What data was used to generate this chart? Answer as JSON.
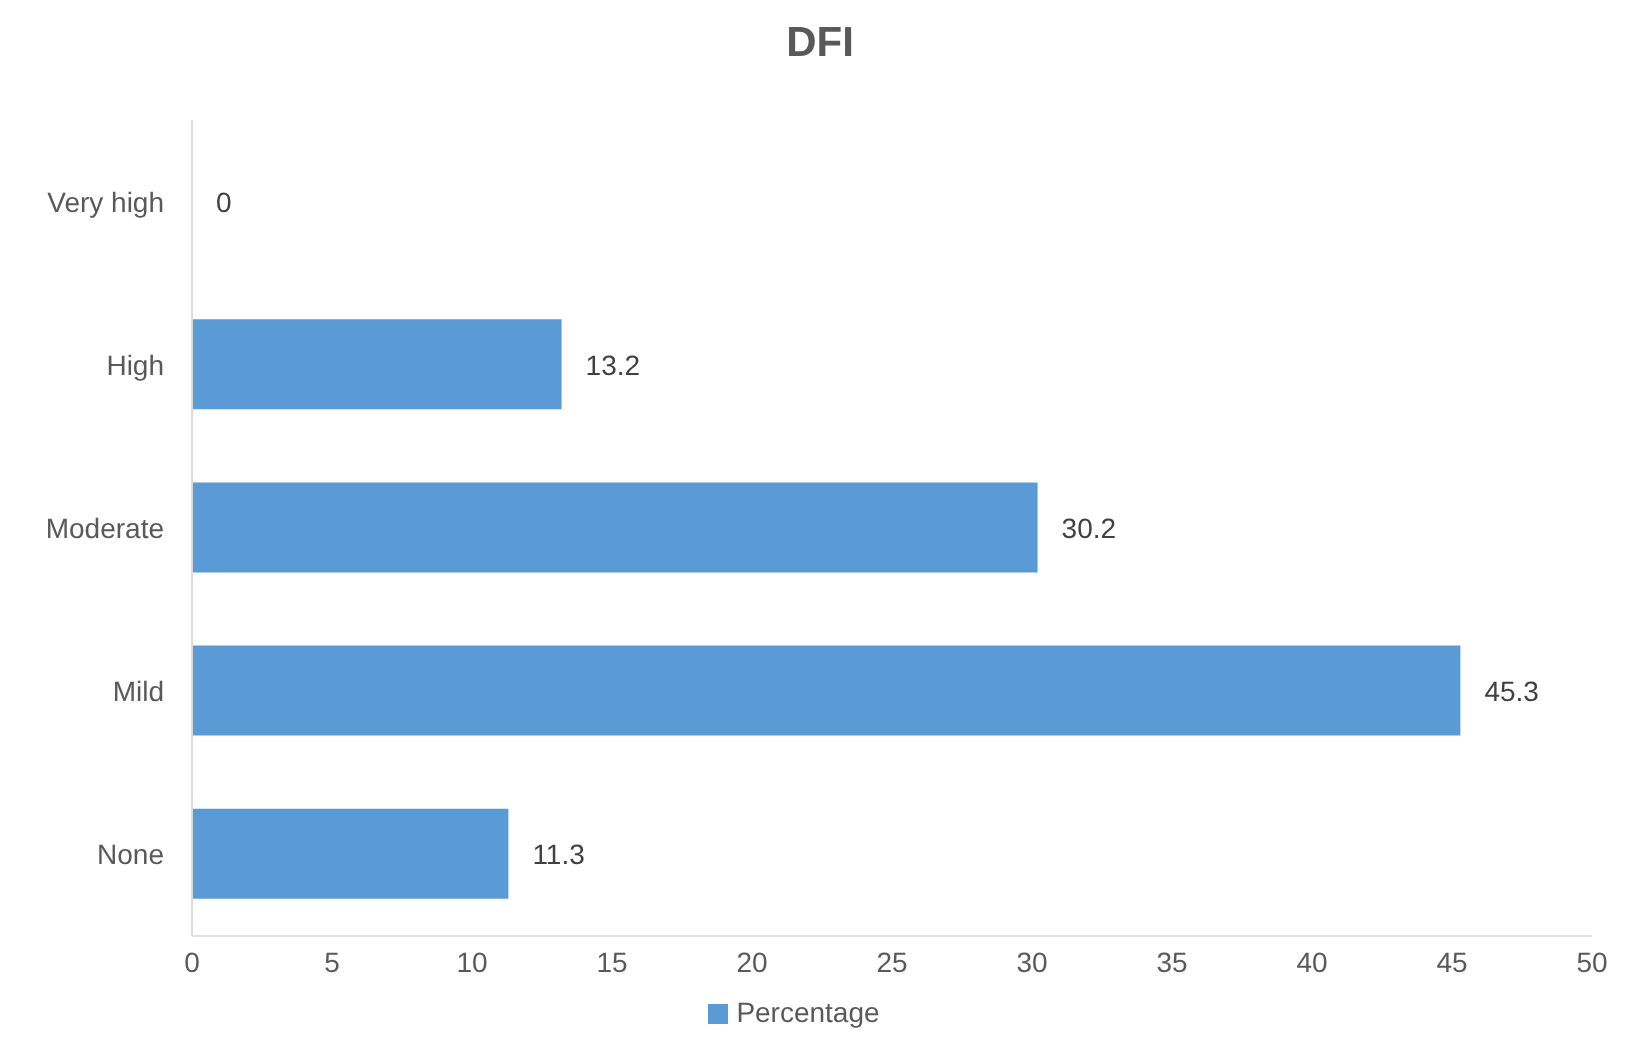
{
  "chart_data": {
    "type": "bar",
    "orientation": "horizontal",
    "title": "DFI",
    "categories": [
      "Very high",
      "High",
      "Moderate",
      "Mild",
      "None"
    ],
    "series": [
      {
        "name": "Percentage",
        "color": "#5b9bd5",
        "values": [
          0,
          13.2,
          30.2,
          45.3,
          11.3
        ]
      }
    ],
    "xlim": [
      0,
      50
    ],
    "xticks": [
      0,
      5,
      10,
      15,
      20,
      25,
      30,
      35,
      40,
      45,
      50
    ],
    "grid": false,
    "legend": "bottom",
    "data_labels": true
  }
}
